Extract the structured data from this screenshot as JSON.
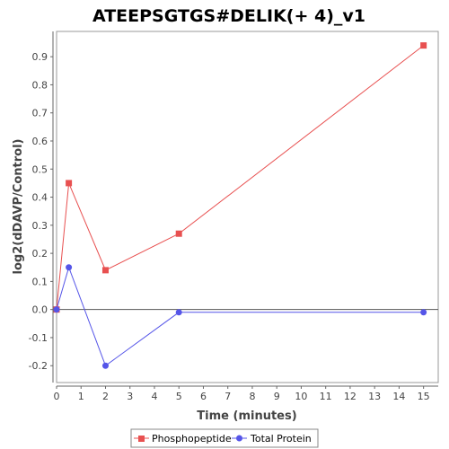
{
  "chart_data": {
    "type": "line",
    "title": "ATEEPSGTGS#DELIK(+ 4)_v1",
    "xlabel": "Time (minutes)",
    "ylabel": "log2(dDAVP/Control)",
    "xlim": [
      0,
      15.6
    ],
    "ylim": [
      -0.26,
      0.99
    ],
    "xticks": [
      0,
      1,
      2,
      3,
      4,
      5,
      6,
      7,
      8,
      9,
      10,
      11,
      12,
      13,
      14,
      15
    ],
    "yticks": [
      -0.2,
      -0.1,
      0.0,
      0.1,
      0.2,
      0.3,
      0.4,
      0.5,
      0.6,
      0.7,
      0.8,
      0.9
    ],
    "ytick_labels": [
      "-0.2",
      "-0.1",
      "0.0",
      "0.1",
      "0.2",
      "0.3",
      "0.4",
      "0.5",
      "0.6",
      "0.7",
      "0.8",
      "0.9"
    ],
    "grid": false,
    "zero_line": true,
    "legend_position": "bottom",
    "series": [
      {
        "name": "Phosphopeptide",
        "color": "#e85050",
        "marker": "square",
        "x": [
          0,
          0.5,
          2,
          5,
          15
        ],
        "y": [
          0.0,
          0.45,
          0.14,
          0.27,
          0.94
        ]
      },
      {
        "name": "Total Protein",
        "color": "#5555e8",
        "marker": "circle",
        "x": [
          0,
          0.5,
          2,
          5,
          15
        ],
        "y": [
          0.0,
          0.15,
          -0.2,
          -0.01,
          -0.01
        ]
      }
    ]
  }
}
